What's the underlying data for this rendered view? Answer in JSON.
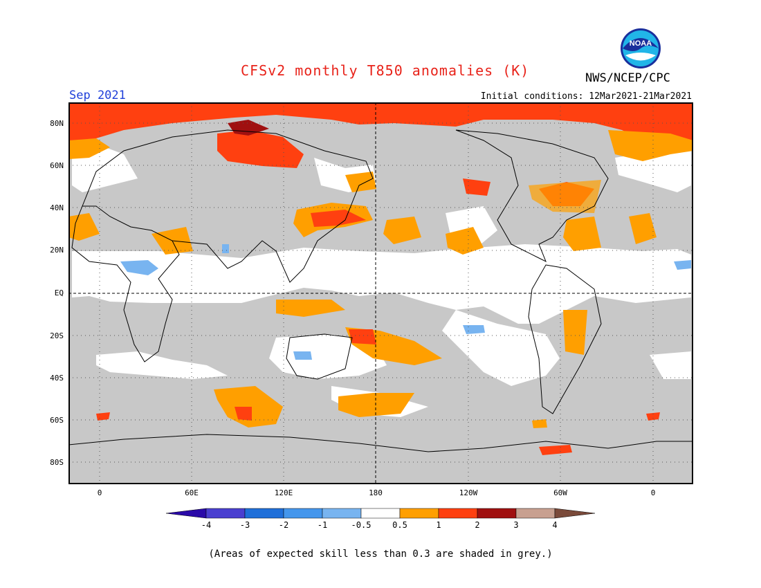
{
  "title": "CFSv2 monthly T850 anomalies (K)",
  "month": "Sep 2021",
  "initial_conditions": "Initial conditions: 12Mar2021-21Mar2021",
  "agency": "NWS/NCEP/CPC",
  "logo_text": "NOAA",
  "footnote": "(Areas of expected skill less than 0.3 are shaded in grey.)",
  "colors": {
    "title": "#e8231a",
    "month": "#1f3fd9",
    "grey": "#c8c8c8",
    "orange": "#ff9f00",
    "red": "#ff4010",
    "darkred": "#a01010",
    "lightblue": "#78b4f0"
  },
  "lat_labels": [
    "80N",
    "60N",
    "40N",
    "20N",
    "EQ",
    "20S",
    "40S",
    "60S",
    "80S"
  ],
  "lon_labels": [
    "0",
    "60E",
    "120E",
    "180",
    "120W",
    "60W",
    "0"
  ],
  "colorbar": {
    "labels": [
      "-4",
      "-3",
      "-2",
      "-1",
      "-0.5",
      "0.5",
      "1",
      "2",
      "3",
      "4"
    ],
    "colors": [
      "#2a0aa8",
      "#4a3fd0",
      "#1f6fd9",
      "#4496ec",
      "#78b4f0",
      "#ffffff",
      "#ff9f00",
      "#ff4010",
      "#a01010",
      "#c8a090",
      "#7a4a3a"
    ]
  }
}
